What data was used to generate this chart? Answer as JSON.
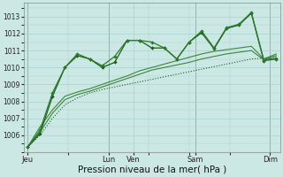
{
  "bg_color": "#cce8e4",
  "grid_color": "#a8d4ce",
  "line_color_dark": "#1a5c1a",
  "line_color_mid": "#2d7a2d",
  "xlabel": "Pression niveau de la mer( hPa )",
  "xlabel_fontsize": 7.5,
  "yticks": [
    1006,
    1007,
    1008,
    1009,
    1010,
    1011,
    1012,
    1013
  ],
  "ylim": [
    1005.0,
    1013.8
  ],
  "xlim": [
    -0.3,
    20.3
  ],
  "xtick_labels": [
    "Jeu",
    "Lun",
    "Ven",
    "Sam",
    "Dim"
  ],
  "xtick_positions": [
    0,
    6.5,
    8.5,
    13.5,
    19.5
  ],
  "vlines_x": [
    0,
    6.5,
    13.5,
    19.5
  ],
  "num_points": 21,
  "series_dotted": [
    1005.3,
    1006.0,
    1007.0,
    1007.8,
    1008.2,
    1008.5,
    1008.7,
    1008.85,
    1009.0,
    1009.15,
    1009.3,
    1009.45,
    1009.6,
    1009.75,
    1009.9,
    1010.05,
    1010.2,
    1010.35,
    1010.5,
    1010.55,
    1010.65
  ],
  "series_trend1": [
    1005.3,
    1006.2,
    1007.3,
    1008.1,
    1008.4,
    1008.6,
    1008.85,
    1009.1,
    1009.35,
    1009.6,
    1009.85,
    1010.0,
    1010.15,
    1010.3,
    1010.5,
    1010.65,
    1010.8,
    1010.9,
    1011.0,
    1010.45,
    1010.7
  ],
  "series_trend2": [
    1005.3,
    1006.5,
    1007.5,
    1008.3,
    1008.55,
    1008.75,
    1009.0,
    1009.25,
    1009.5,
    1009.8,
    1010.0,
    1010.2,
    1010.4,
    1010.6,
    1010.8,
    1010.95,
    1011.05,
    1011.15,
    1011.25,
    1010.5,
    1010.8
  ],
  "series_main": [
    1005.3,
    1006.1,
    1008.3,
    1010.0,
    1010.7,
    1010.5,
    1010.0,
    1010.3,
    1011.6,
    1011.6,
    1011.15,
    1011.15,
    1010.5,
    1011.5,
    1012.05,
    1011.1,
    1012.3,
    1012.5,
    1013.2,
    1010.4,
    1010.5
  ],
  "series_upper": [
    1005.3,
    1006.3,
    1008.5,
    1010.0,
    1010.8,
    1010.5,
    1010.1,
    1010.65,
    1011.6,
    1011.6,
    1011.5,
    1011.15,
    1010.5,
    1011.5,
    1012.15,
    1011.15,
    1012.35,
    1012.55,
    1013.25,
    1010.45,
    1010.55
  ],
  "figsize": [
    3.2,
    2.0
  ],
  "dpi": 100
}
